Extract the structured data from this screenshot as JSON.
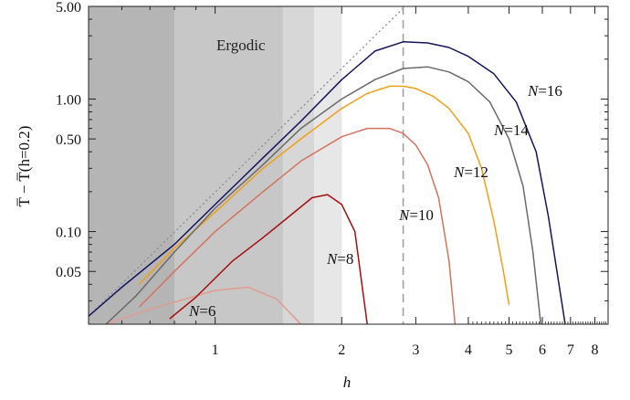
{
  "chart_data": {
    "type": "line",
    "xscale": "log",
    "yscale": "log",
    "xlim": [
      0.5,
      8.6
    ],
    "ylim": [
      0.02,
      5.0
    ],
    "xlabel": "h",
    "ylabel": "T̅ − T̅(h=0.2)",
    "xticks": [
      {
        "value": 1,
        "label": "1"
      },
      {
        "value": 2,
        "label": "2"
      },
      {
        "value": 3,
        "label": "3"
      },
      {
        "value": 4,
        "label": "4"
      },
      {
        "value": 5,
        "label": "5"
      },
      {
        "value": 6,
        "label": "6"
      },
      {
        "value": 7,
        "label": "7"
      },
      {
        "value": 8,
        "label": "8"
      }
    ],
    "yticks": [
      {
        "value": 0.05,
        "label": "0.05"
      },
      {
        "value": 0.1,
        "label": "0.10"
      },
      {
        "value": 0.5,
        "label": "0.50"
      },
      {
        "value": 1.0,
        "label": "1.00"
      },
      {
        "value": 5.0,
        "label": "5.00"
      }
    ],
    "regions": [
      {
        "x0": 0.5,
        "x1": 0.8,
        "color": "#b5b5b5"
      },
      {
        "x0": 0.8,
        "x1": 1.45,
        "color": "#c7c7c7"
      },
      {
        "x0": 1.45,
        "x1": 1.72,
        "color": "#d7d7d7"
      },
      {
        "x0": 1.72,
        "x1": 2.0,
        "color": "#e7e7e7"
      }
    ],
    "region_label": "Ergodic",
    "vline": {
      "x": 2.8,
      "color": "#a0a0a0"
    },
    "reference_line": {
      "x": [
        0.5,
        3.0
      ],
      "y": [
        0.023,
        6.0
      ],
      "color": "#8a8a8a"
    },
    "series": [
      {
        "name": "N=6",
        "color": "#e09c90",
        "x": [
          0.55,
          0.7,
          0.85,
          1.0,
          1.2,
          1.4,
          1.6
        ],
        "y": [
          0.02,
          0.026,
          0.031,
          0.036,
          0.038,
          0.031,
          0.02
        ]
      },
      {
        "name": "N=8",
        "color": "#a40e0e",
        "x": [
          0.78,
          0.9,
          1.1,
          1.3,
          1.5,
          1.7,
          1.85,
          2.0,
          2.15,
          2.3
        ],
        "y": [
          0.022,
          0.032,
          0.06,
          0.09,
          0.13,
          0.18,
          0.19,
          0.16,
          0.1,
          0.02
        ]
      },
      {
        "name": "N=10",
        "color": "#d4735c",
        "x": [
          0.66,
          0.8,
          1.0,
          1.3,
          1.6,
          2.0,
          2.3,
          2.6,
          2.8,
          3.0,
          3.2,
          3.4,
          3.6,
          3.72
        ],
        "y": [
          0.027,
          0.05,
          0.1,
          0.2,
          0.34,
          0.52,
          0.6,
          0.6,
          0.55,
          0.45,
          0.32,
          0.18,
          0.06,
          0.02
        ]
      },
      {
        "name": "N=12",
        "color": "#f0a017",
        "x": [
          0.66,
          0.8,
          1.0,
          1.3,
          1.6,
          2.0,
          2.3,
          2.6,
          2.8,
          3.0,
          3.3,
          3.6,
          4.0,
          4.3,
          4.6,
          4.85,
          5.0
        ],
        "y": [
          0.04,
          0.075,
          0.14,
          0.3,
          0.5,
          0.85,
          1.1,
          1.25,
          1.25,
          1.2,
          1.05,
          0.85,
          0.55,
          0.3,
          0.12,
          0.05,
          0.028
        ]
      },
      {
        "name": "N=14",
        "color": "#6a6a6a",
        "x": [
          0.55,
          0.65,
          0.8,
          1.0,
          1.3,
          1.6,
          2.0,
          2.4,
          2.8,
          3.2,
          3.6,
          4.0,
          4.5,
          5.0,
          5.4,
          5.7,
          5.95
        ],
        "y": [
          0.02,
          0.033,
          0.07,
          0.15,
          0.32,
          0.6,
          1.0,
          1.4,
          1.7,
          1.75,
          1.6,
          1.35,
          0.95,
          0.5,
          0.22,
          0.07,
          0.02
        ]
      },
      {
        "name": "N=16",
        "color": "#15145e",
        "x": [
          0.5,
          0.6,
          0.8,
          1.0,
          1.3,
          1.6,
          2.0,
          2.4,
          2.8,
          3.2,
          3.6,
          4.0,
          4.6,
          5.2,
          5.8,
          6.2,
          6.5,
          6.8
        ],
        "y": [
          0.023,
          0.038,
          0.08,
          0.16,
          0.36,
          0.68,
          1.4,
          2.3,
          2.7,
          2.65,
          2.45,
          2.1,
          1.55,
          0.95,
          0.4,
          0.13,
          0.05,
          0.02
        ]
      }
    ]
  }
}
